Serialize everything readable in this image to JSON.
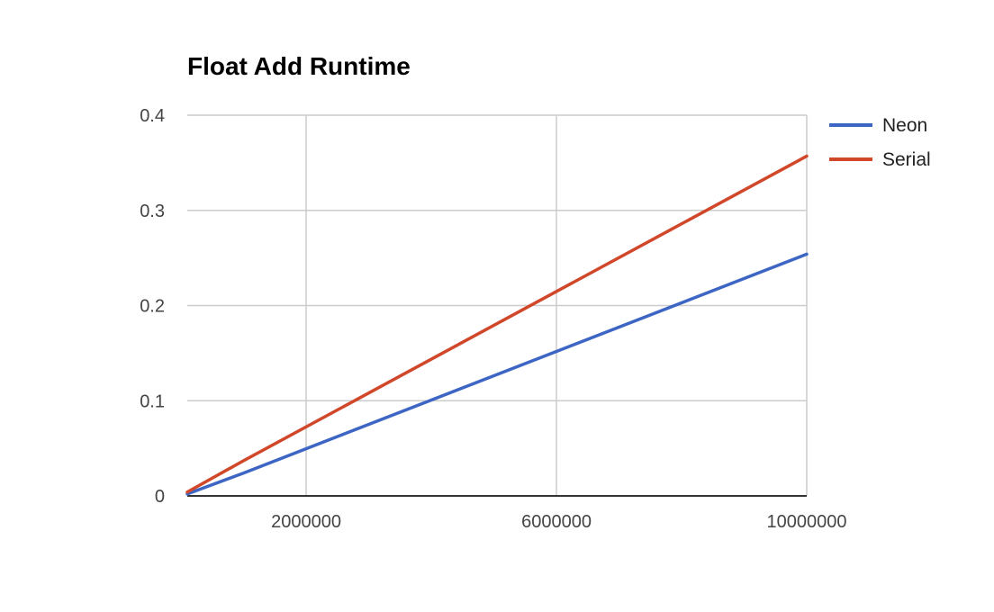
{
  "chart_data": {
    "type": "line",
    "title": "Float Add Runtime",
    "xlabel": "",
    "ylabel": "",
    "xlim": [
      100000,
      10000000
    ],
    "ylim": [
      0,
      0.4
    ],
    "x_ticks": [
      2000000,
      6000000,
      10000000
    ],
    "x_tick_labels": [
      "2000000",
      "6000000",
      "10000000"
    ],
    "y_ticks": [
      0,
      0.1,
      0.2,
      0.3,
      0.4
    ],
    "y_tick_labels": [
      "0",
      "0.1",
      "0.2",
      "0.3",
      "0.4"
    ],
    "grid": true,
    "legend_position": "right",
    "series": [
      {
        "name": "Neon",
        "color": "#3d66c4",
        "x": [
          100000,
          1000000,
          10000000
        ],
        "y": [
          0.002,
          0.024,
          0.254
        ]
      },
      {
        "name": "Serial",
        "color": "#d0472a",
        "x": [
          100000,
          1000000,
          10000000
        ],
        "y": [
          0.004,
          0.037,
          0.357
        ]
      }
    ]
  }
}
